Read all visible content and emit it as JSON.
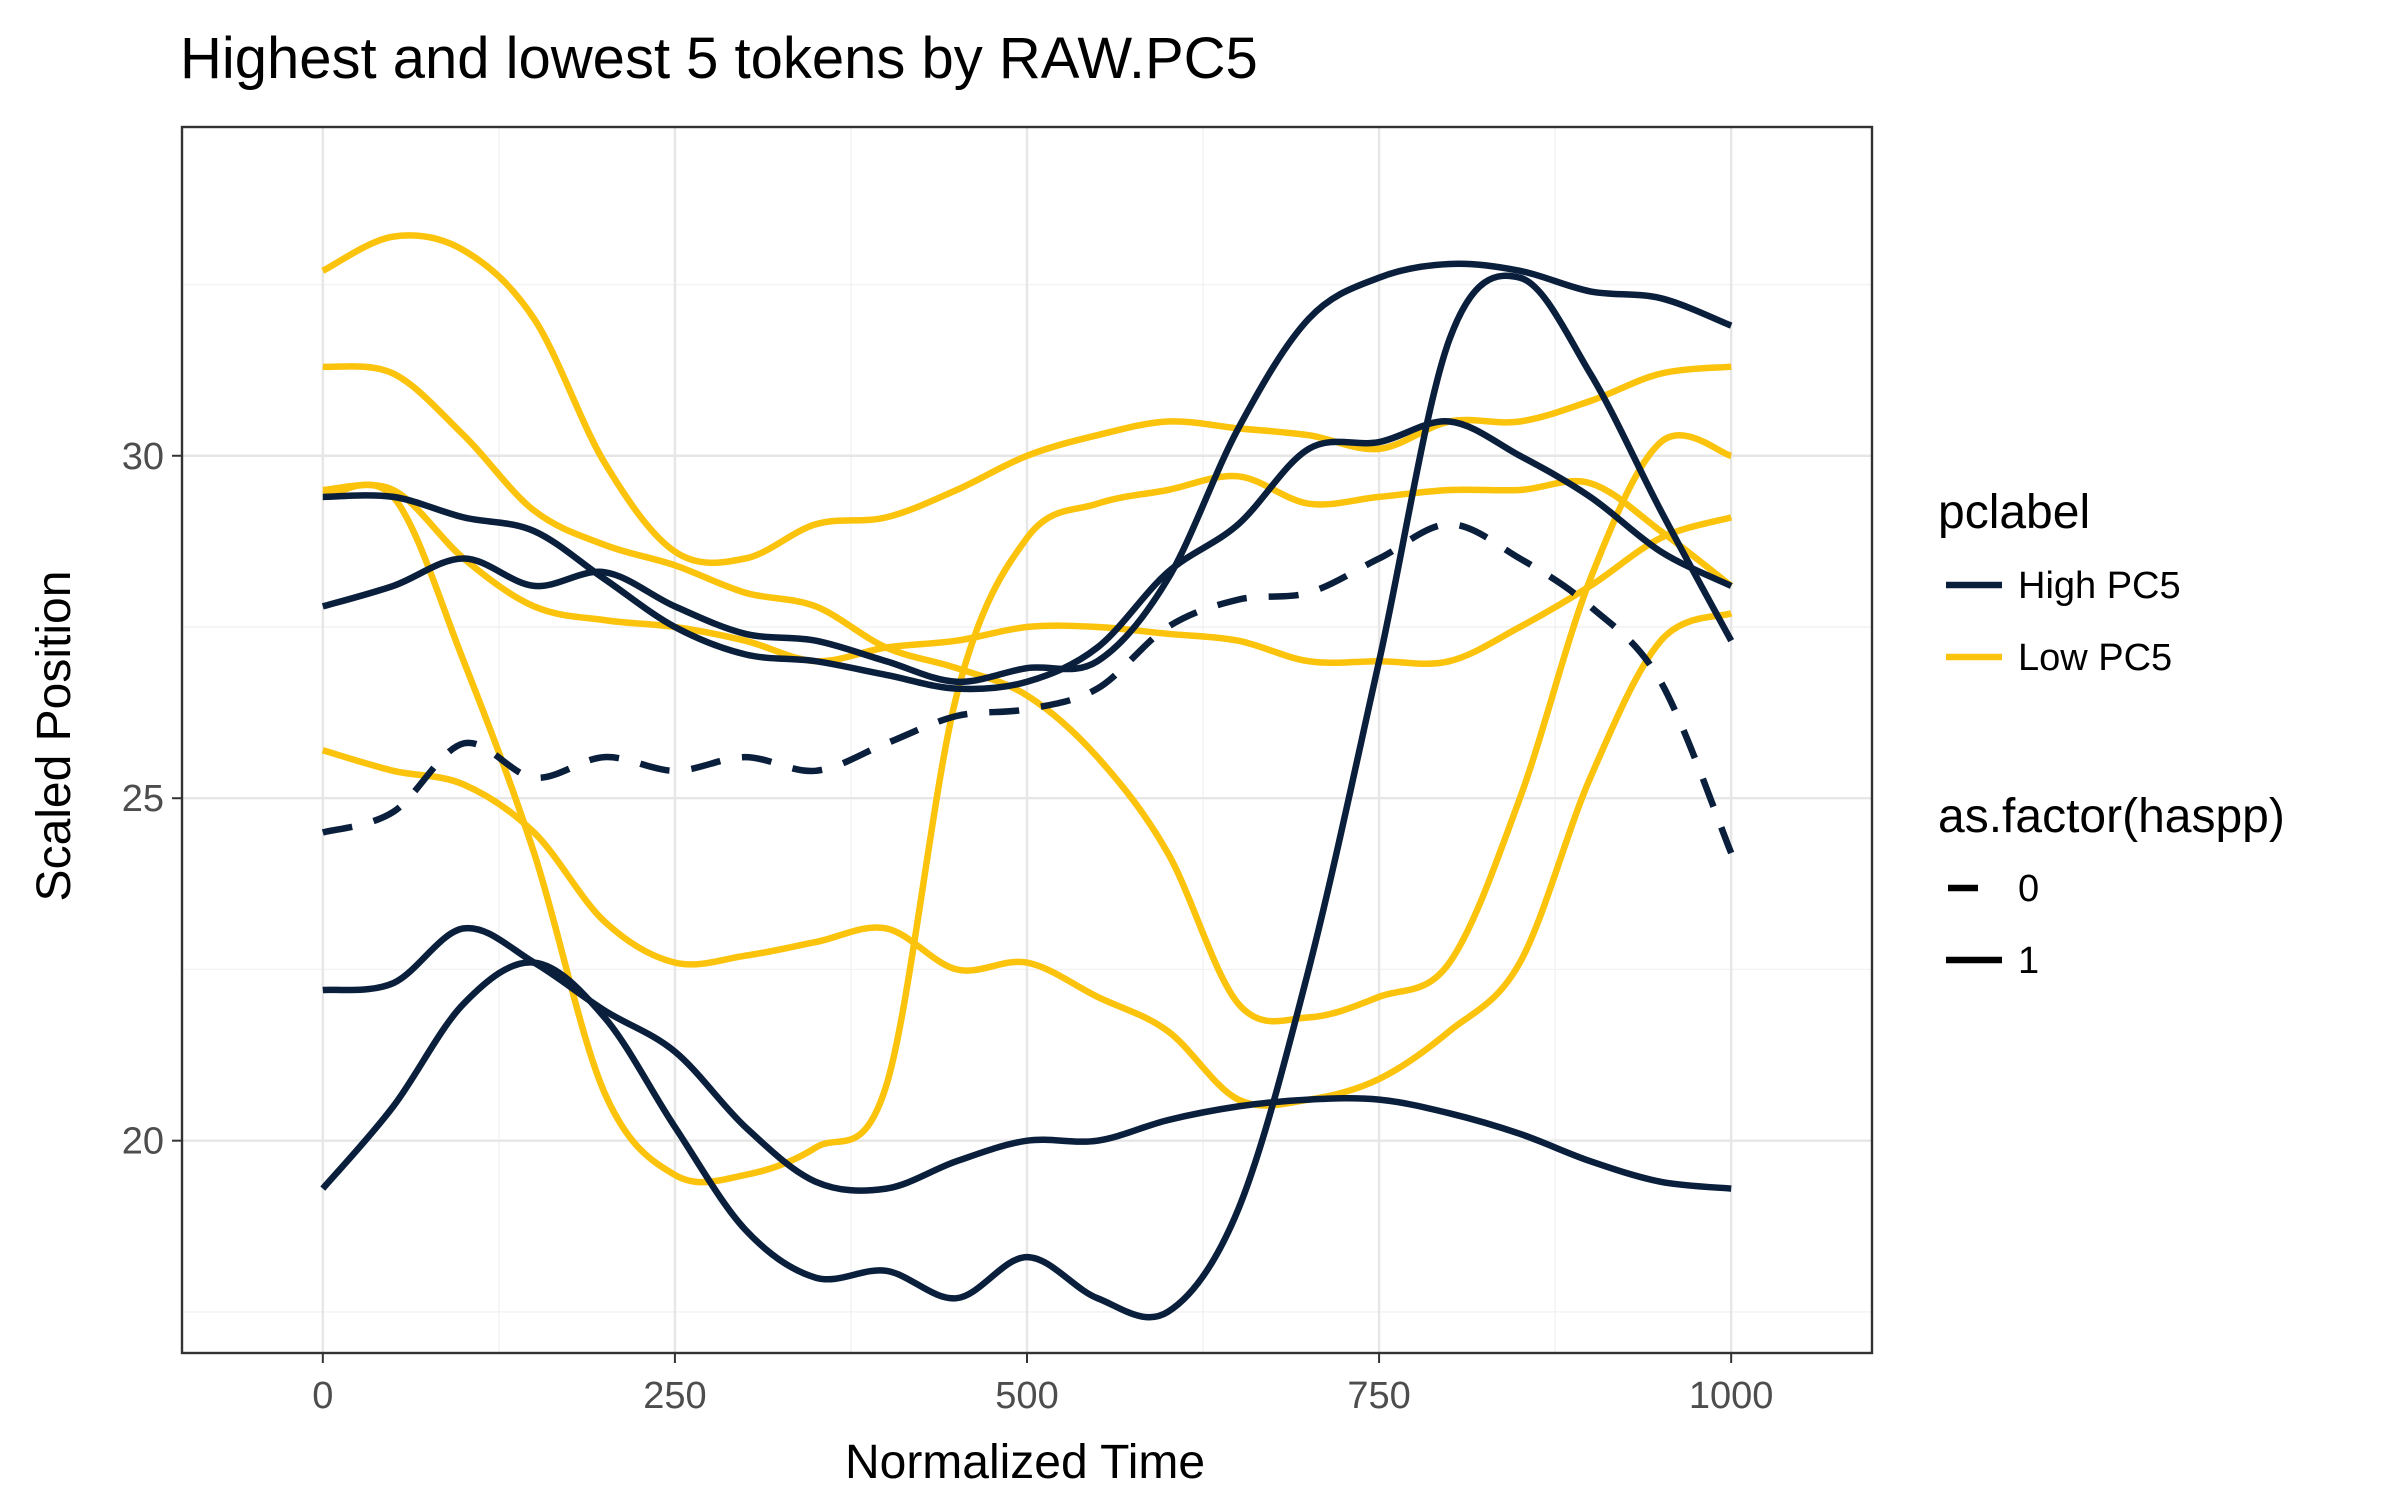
{
  "chart_data": {
    "type": "line",
    "title": "Highest and lowest 5 tokens by RAW.PC5",
    "xlabel": "Normalized Time",
    "ylabel": "Scaled Position",
    "xlim": [
      -100,
      1100
    ],
    "ylim": [
      16.9,
      34.8
    ],
    "x_ticks": [
      0,
      250,
      500,
      750,
      1000
    ],
    "x_tick_labels": [
      "0",
      "250",
      "500",
      "750",
      "1000"
    ],
    "y_ticks": [
      20,
      25,
      30
    ],
    "y_tick_labels": [
      "20",
      "25",
      "30"
    ],
    "grid": true,
    "legend_position": "right",
    "colors": {
      "High PC5": "#0a1f3c",
      "Low PC5": "#fbc30b"
    },
    "legends": [
      {
        "title": "pclabel",
        "entries": [
          {
            "label": "High PC5",
            "color": "#0a1f3c",
            "dash": false
          },
          {
            "label": "Low PC5",
            "color": "#fbc30b",
            "dash": false
          }
        ]
      },
      {
        "title": "as.factor(haspp)",
        "entries": [
          {
            "label": "0",
            "color": "#000000",
            "dash": true
          },
          {
            "label": "1",
            "color": "#000000",
            "dash": false
          }
        ]
      }
    ],
    "series": [
      {
        "pclabel": "High PC5",
        "haspp": "1",
        "x": [
          0,
          50,
          100,
          150,
          200,
          250,
          300,
          350,
          400,
          450,
          500,
          550,
          600,
          650,
          700,
          750,
          800,
          850,
          900,
          950,
          1000
        ],
        "y": [
          29.4,
          29.4,
          29.1,
          28.9,
          28.2,
          27.5,
          27.1,
          27.0,
          26.8,
          26.6,
          26.7,
          27.2,
          28.3,
          29.0,
          30.1,
          30.2,
          30.5,
          30.0,
          29.4,
          28.6,
          28.1
        ]
      },
      {
        "pclabel": "High PC5",
        "haspp": "1",
        "x": [
          0,
          50,
          100,
          150,
          200,
          250,
          300,
          350,
          400,
          450,
          500,
          550,
          600,
          650,
          700,
          750,
          800,
          850,
          900,
          950,
          1000
        ],
        "y": [
          27.8,
          28.1,
          28.5,
          28.1,
          28.3,
          27.8,
          27.4,
          27.3,
          27.0,
          26.7,
          26.9,
          27.0,
          28.2,
          30.4,
          32.0,
          32.6,
          32.8,
          32.7,
          32.4,
          32.3,
          31.9
        ]
      },
      {
        "pclabel": "High PC5",
        "haspp": "1",
        "x": [
          0,
          50,
          100,
          150,
          200,
          250,
          300,
          350,
          400,
          450,
          500,
          550,
          600,
          650,
          700,
          750,
          800,
          850,
          900,
          950,
          1000
        ],
        "y": [
          22.2,
          22.3,
          23.1,
          22.6,
          21.9,
          21.3,
          20.2,
          19.4,
          19.3,
          19.7,
          20.0,
          20.0,
          20.3,
          20.5,
          20.6,
          20.6,
          20.4,
          20.1,
          19.7,
          19.4,
          19.3
        ]
      },
      {
        "pclabel": "High PC5",
        "haspp": "1",
        "x": [
          0,
          50,
          100,
          150,
          200,
          250,
          300,
          350,
          400,
          450,
          500,
          550,
          600,
          650,
          700,
          750,
          800,
          850,
          900,
          950,
          1000
        ],
        "y": [
          19.3,
          20.5,
          22.0,
          22.6,
          21.8,
          20.2,
          18.7,
          18.0,
          18.1,
          17.7,
          18.3,
          17.7,
          17.5,
          19.0,
          22.5,
          27.0,
          31.7,
          32.6,
          31.2,
          29.2,
          27.3
        ]
      },
      {
        "pclabel": "High PC5",
        "haspp": "0",
        "x": [
          0,
          50,
          100,
          150,
          200,
          250,
          300,
          350,
          400,
          450,
          500,
          550,
          600,
          650,
          700,
          750,
          800,
          850,
          900,
          950,
          1000
        ],
        "y": [
          24.5,
          24.8,
          25.8,
          25.3,
          25.6,
          25.4,
          25.6,
          25.4,
          25.8,
          26.2,
          26.3,
          26.6,
          27.5,
          27.9,
          28.0,
          28.5,
          29.0,
          28.5,
          27.8,
          26.7,
          24.2
        ]
      },
      {
        "pclabel": "Low PC5",
        "haspp": "1",
        "x": [
          0,
          50,
          100,
          150,
          200,
          250,
          300,
          350,
          400,
          450,
          500,
          550,
          600,
          650,
          700,
          750,
          800,
          850,
          900,
          950,
          1000
        ],
        "y": [
          32.7,
          33.2,
          33.0,
          32.0,
          29.9,
          28.6,
          28.5,
          29.0,
          29.1,
          29.5,
          30.0,
          30.3,
          30.5,
          30.4,
          30.3,
          30.1,
          30.5,
          30.5,
          30.8,
          31.2,
          31.3
        ]
      },
      {
        "pclabel": "Low PC5",
        "haspp": "1",
        "x": [
          0,
          50,
          100,
          150,
          200,
          250,
          300,
          350,
          400,
          450,
          500,
          550,
          600,
          650,
          700,
          750,
          800,
          850,
          900,
          950,
          1000
        ],
        "y": [
          31.3,
          31.2,
          30.3,
          29.2,
          28.7,
          28.4,
          28.0,
          27.8,
          27.2,
          26.9,
          26.5,
          25.6,
          24.2,
          22.0,
          21.8,
          22.1,
          22.6,
          25.0,
          28.2,
          30.2,
          30.0
        ]
      },
      {
        "pclabel": "Low PC5",
        "haspp": "1",
        "x": [
          0,
          50,
          100,
          150,
          200,
          250,
          300,
          350,
          400,
          450,
          500,
          550,
          600,
          650,
          700,
          750,
          800,
          850,
          900,
          950,
          1000
        ],
        "y": [
          29.5,
          29.5,
          28.5,
          27.8,
          27.6,
          27.5,
          27.3,
          27.0,
          27.2,
          27.3,
          27.5,
          27.5,
          27.4,
          27.3,
          27.0,
          27.0,
          27.0,
          27.5,
          28.1,
          28.8,
          29.1
        ]
      },
      {
        "pclabel": "Low PC5",
        "haspp": "1",
        "x": [
          0,
          50,
          100,
          150,
          200,
          250,
          300,
          350,
          400,
          450,
          500,
          550,
          600,
          650,
          700,
          750,
          800,
          850,
          900,
          950,
          1000
        ],
        "y": [
          29.4,
          29.4,
          27.0,
          24.2,
          20.7,
          19.5,
          19.5,
          19.9,
          20.8,
          26.5,
          28.8,
          29.3,
          29.5,
          29.7,
          29.3,
          29.4,
          29.5,
          29.5,
          29.6,
          28.9,
          28.1
        ]
      },
      {
        "pclabel": "Low PC5",
        "haspp": "1",
        "x": [
          0,
          50,
          100,
          150,
          200,
          250,
          300,
          350,
          400,
          450,
          500,
          550,
          600,
          650,
          700,
          750,
          800,
          850,
          900,
          950,
          1000
        ],
        "y": [
          25.7,
          25.4,
          25.2,
          24.5,
          23.2,
          22.6,
          22.7,
          22.9,
          23.1,
          22.5,
          22.6,
          22.1,
          21.6,
          20.6,
          20.6,
          20.9,
          21.6,
          22.6,
          25.3,
          27.3,
          27.7
        ]
      }
    ]
  }
}
